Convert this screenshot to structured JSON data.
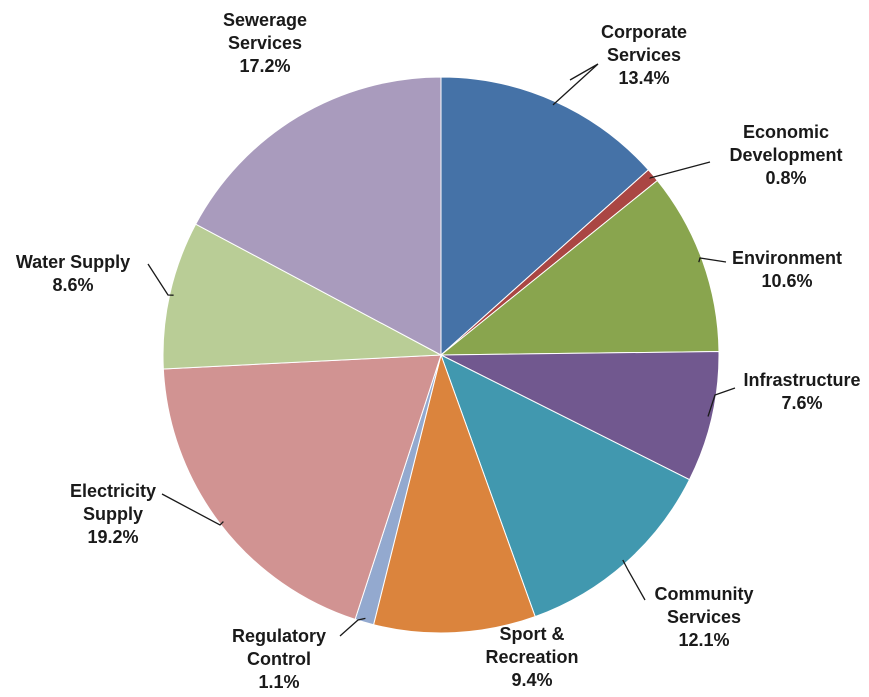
{
  "chart_data": {
    "type": "pie",
    "slices": [
      {
        "name": "Corporate Services",
        "lines": [
          "Corporate",
          "Services"
        ],
        "value": 13.4,
        "label": "13.4%",
        "color": "#4572A7"
      },
      {
        "name": "Economic Development",
        "lines": [
          "Economic",
          "Development"
        ],
        "value": 0.8,
        "label": "0.8%",
        "color": "#AA4643"
      },
      {
        "name": "Environment",
        "lines": [
          "Environment"
        ],
        "value": 10.6,
        "label": "10.6%",
        "color": "#89A54E"
      },
      {
        "name": "Infrastructure",
        "lines": [
          "Infrastructure"
        ],
        "value": 7.6,
        "label": "7.6%",
        "color": "#71588F"
      },
      {
        "name": "Community Services",
        "lines": [
          "Community",
          "Services"
        ],
        "value": 12.1,
        "label": "12.1%",
        "color": "#4198AF"
      },
      {
        "name": "Sport & Recreation",
        "lines": [
          "Sport &",
          "Recreation"
        ],
        "value": 9.4,
        "label": "9.4%",
        "color": "#DB843D"
      },
      {
        "name": "Regulatory Control",
        "lines": [
          "Regulatory",
          "Control"
        ],
        "value": 1.1,
        "label": "1.1%",
        "color": "#93A9CF"
      },
      {
        "name": "Electricity Supply",
        "lines": [
          "Electricity",
          "Supply"
        ],
        "value": 19.2,
        "label": "19.2%",
        "color": "#D19392"
      },
      {
        "name": "Water Supply",
        "lines": [
          "Water Supply"
        ],
        "value": 8.6,
        "label": "8.6%",
        "color": "#B9CD96"
      },
      {
        "name": "Sewerage Services",
        "lines": [
          "Sewerage",
          "Services"
        ],
        "value": 17.2,
        "label": "17.2%",
        "color": "#A99BBD"
      }
    ],
    "start_angle": "12 o'clock",
    "direction": "clockwise",
    "legend": "none",
    "data_labels": "outside with leader lines"
  }
}
